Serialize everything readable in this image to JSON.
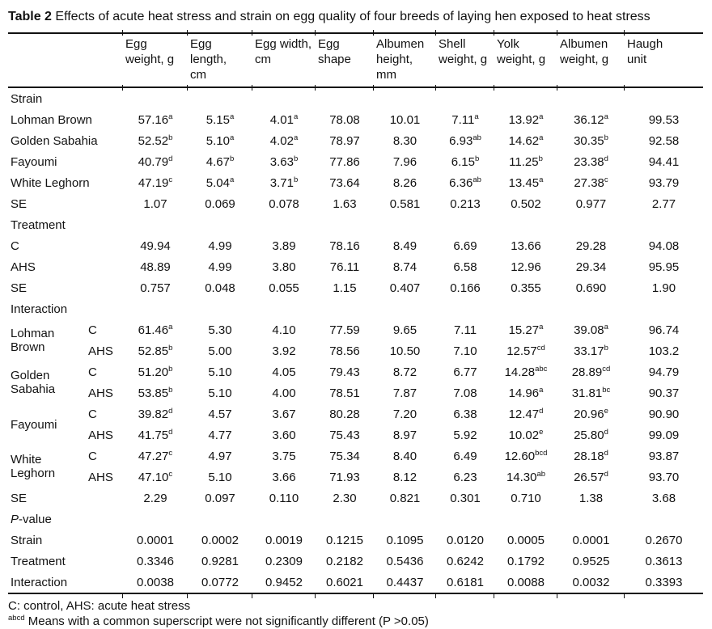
{
  "title": {
    "label": "Table 2",
    "text": " Effects of acute heat stress and strain on egg quality of four breeds of laying hen exposed to heat stress"
  },
  "table": {
    "columns": [
      "Egg weight, g",
      "Egg length, cm",
      "Egg width, cm",
      "Egg shape",
      "Albumen height, mm",
      "Shell weight, g",
      "Yolk weight, g",
      "Albumen weight, g",
      "Haugh unit"
    ],
    "rows": [
      {
        "type": "section",
        "label": "Strain"
      },
      {
        "type": "data",
        "label": "Lohman Brown",
        "values": [
          "57.16^a",
          "5.15^a",
          "4.01^a",
          "78.08",
          "10.01",
          "7.11^a",
          "13.92^a",
          "36.12^a",
          "99.53"
        ]
      },
      {
        "type": "data",
        "label": "Golden Sabahia",
        "values": [
          "52.52^b",
          "5.10^a",
          "4.02^a",
          "78.97",
          "8.30",
          "6.93^ab",
          "14.62^a",
          "30.35^b",
          "92.58"
        ]
      },
      {
        "type": "data",
        "label": "Fayoumi",
        "values": [
          "40.79^d",
          "4.67^b",
          "3.63^b",
          "77.86",
          "7.96",
          "6.15^b",
          "11.25^b",
          "23.38^d",
          "94.41"
        ]
      },
      {
        "type": "data",
        "label": "White Leghorn",
        "values": [
          "47.19^c",
          "5.04^a",
          "3.71^b",
          "73.64",
          "8.26",
          "6.36^ab",
          "13.45^a",
          "27.38^c",
          "93.79"
        ]
      },
      {
        "type": "data",
        "label": "SE",
        "values": [
          "1.07",
          "0.069",
          "0.078",
          "1.63",
          "0.581",
          "0.213",
          "0.502",
          "0.977",
          "2.77"
        ]
      },
      {
        "type": "section",
        "label": "Treatment"
      },
      {
        "type": "data",
        "label": "C",
        "values": [
          "49.94",
          "4.99",
          "3.89",
          "78.16",
          "8.49",
          "6.69",
          "13.66",
          "29.28",
          "94.08"
        ]
      },
      {
        "type": "data",
        "label": "AHS",
        "values": [
          "48.89",
          "4.99",
          "3.80",
          "76.11",
          "8.74",
          "6.58",
          "12.96",
          "29.34",
          "95.95"
        ]
      },
      {
        "type": "data",
        "label": "SE",
        "values": [
          "0.757",
          "0.048",
          "0.055",
          "1.15",
          "0.407",
          "0.166",
          "0.355",
          "0.690",
          "1.90"
        ]
      },
      {
        "type": "section",
        "label": "Interaction"
      },
      {
        "type": "data",
        "label": "Lohman Brown",
        "rowspan": 2,
        "sub": "C",
        "values": [
          "61.46^a",
          "5.30",
          "4.10",
          "77.59",
          "9.65",
          "7.11",
          "15.27^a",
          "39.08^a",
          "96.74"
        ]
      },
      {
        "type": "data",
        "sub": "AHS",
        "values": [
          "52.85^b",
          "5.00",
          "3.92",
          "78.56",
          "10.50",
          "7.10",
          "12.57^cd",
          "33.17^b",
          "103.2"
        ]
      },
      {
        "type": "data",
        "label": "Golden Sabahia",
        "rowspan": 2,
        "sub": "C",
        "values": [
          "51.20^b",
          "5.10",
          "4.05",
          "79.43",
          "8.72",
          "6.77",
          "14.28^abc",
          "28.89^cd",
          "94.79"
        ]
      },
      {
        "type": "data",
        "sub": "AHS",
        "values": [
          "53.85^b",
          "5.10",
          "4.00",
          "78.51",
          "7.87",
          "7.08",
          "14.96^a",
          "31.81^bc",
          "90.37"
        ]
      },
      {
        "type": "data",
        "label": "Fayoumi",
        "rowspan": 2,
        "sub": "C",
        "values": [
          "39.82^d",
          "4.57",
          "3.67",
          "80.28",
          "7.20",
          "6.38",
          "12.47^d",
          "20.96^e",
          "90.90"
        ]
      },
      {
        "type": "data",
        "sub": "AHS",
        "values": [
          "41.75^d",
          "4.77",
          "3.60",
          "75.43",
          "8.97",
          "5.92",
          "10.02^e",
          "25.80^d",
          "99.09"
        ]
      },
      {
        "type": "data",
        "label": "White Leghorn",
        "rowspan": 2,
        "sub": "C",
        "values": [
          "47.27^c",
          "4.97",
          "3.75",
          "75.34",
          "8.40",
          "6.49",
          "12.60^bcd",
          "28.18^d",
          "93.87"
        ]
      },
      {
        "type": "data",
        "sub": "AHS",
        "values": [
          "47.10^c",
          "5.10",
          "3.66",
          "71.93",
          "8.12",
          "6.23",
          "14.30^ab",
          "26.57^d",
          "93.70"
        ]
      },
      {
        "type": "data",
        "label": "SE",
        "values": [
          "2.29",
          "0.097",
          "0.110",
          "2.30",
          "0.821",
          "0.301",
          "0.710",
          "1.38",
          "3.68"
        ]
      },
      {
        "type": "section",
        "label": "P-value",
        "italic_first": true
      },
      {
        "type": "data",
        "label": "Strain",
        "values": [
          "0.0001",
          "0.0002",
          "0.0019",
          "0.1215",
          "0.1095",
          "0.0120",
          "0.0005",
          "0.0001",
          "0.2670"
        ]
      },
      {
        "type": "data",
        "label": "Treatment",
        "values": [
          "0.3346",
          "0.9281",
          "0.2309",
          "0.2182",
          "0.5436",
          "0.6242",
          "0.1792",
          "0.9525",
          "0.3613"
        ]
      },
      {
        "type": "data",
        "label": "Interaction",
        "values": [
          "0.0038",
          "0.0772",
          "0.9452",
          "0.6021",
          "0.4437",
          "0.6181",
          "0.0088",
          "0.0032",
          "0.3393"
        ]
      }
    ]
  },
  "footnotes": {
    "line1": "C: control, AHS: acute heat stress",
    "line2": {
      "sup": "abcd",
      "text": " Means with a common superscript were not significantly different (P >0.05)"
    }
  }
}
